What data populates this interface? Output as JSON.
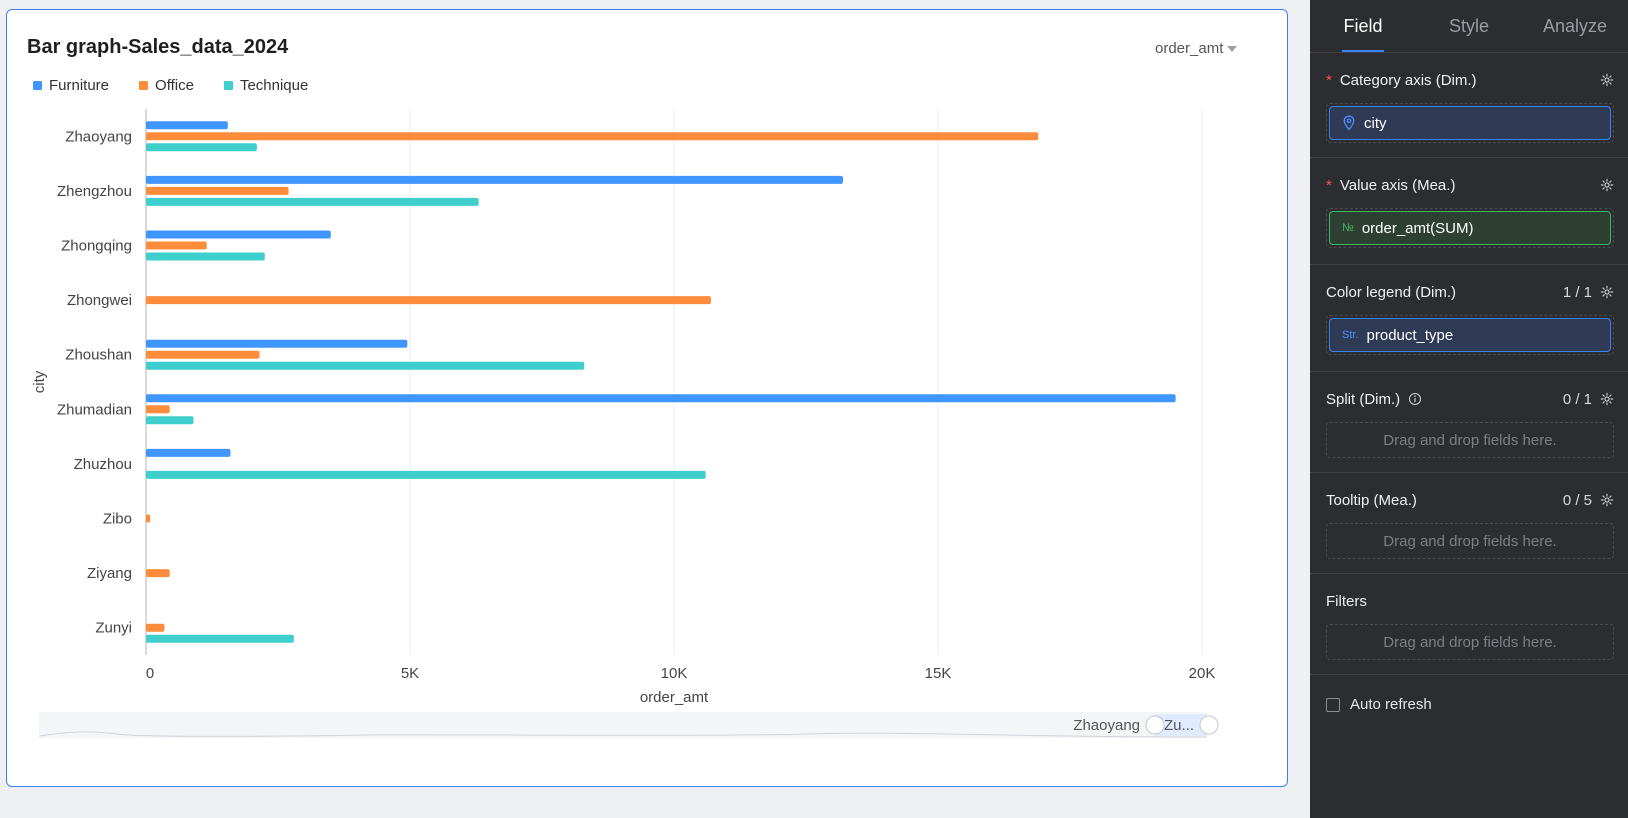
{
  "chart": {
    "title": "Bar graph-Sales_data_2024",
    "measure_selector": "order_amt",
    "zoom_labels": {
      "start": "Zhaoyang",
      "end": "Zu..."
    }
  },
  "chart_data": {
    "type": "bar",
    "orientation": "horizontal",
    "title": "Bar graph-Sales_data_2024",
    "xlabel": "order_amt",
    "ylabel": "city",
    "xlim": [
      0,
      20000
    ],
    "x_ticks": [
      "0",
      "5K",
      "10K",
      "15K",
      "20K"
    ],
    "grid": true,
    "legend_position": "top-left",
    "categories": [
      "Zhaoyang",
      "Zhengzhou",
      "Zhongqing",
      "Zhongwei",
      "Zhoushan",
      "Zhumadian",
      "Zhuzhou",
      "Zibo",
      "Ziyang",
      "Zunyi"
    ],
    "series": [
      {
        "name": "Furniture",
        "color": "#4096ff",
        "values": [
          1550,
          13200,
          3500,
          null,
          4950,
          19500,
          1600,
          null,
          null,
          null
        ]
      },
      {
        "name": "Office",
        "color": "#ff8c3a",
        "values": [
          16900,
          2700,
          1150,
          10700,
          2150,
          450,
          null,
          80,
          450,
          350
        ]
      },
      {
        "name": "Technique",
        "color": "#3ecfcc",
        "values": [
          2100,
          6300,
          2250,
          null,
          8300,
          900,
          10600,
          null,
          null,
          2800
        ]
      }
    ]
  },
  "panel": {
    "tabs": [
      {
        "label": "Field",
        "active": true
      },
      {
        "label": "Style",
        "active": false
      },
      {
        "label": "Analyze",
        "active": false
      }
    ],
    "category_axis": {
      "required_mark": "*",
      "title": "Category axis (Dim.)",
      "field": "city",
      "icon": "location-pin-icon"
    },
    "value_axis": {
      "required_mark": "*",
      "title": "Value axis (Mea.)",
      "field": "order_amt(SUM)",
      "icon_text": "№"
    },
    "color_legend": {
      "title": "Color legend (Dim.)",
      "count": "1 / 1",
      "field": "product_type",
      "icon_text": "Str."
    },
    "split": {
      "title": "Split (Dim.)",
      "count": "0 / 1",
      "placeholder": "Drag and drop fields here."
    },
    "tooltip": {
      "title": "Tooltip (Mea.)",
      "count": "0 / 5",
      "placeholder": "Drag and drop fields here."
    },
    "filters": {
      "title": "Filters",
      "placeholder": "Drag and drop fields here."
    },
    "auto_refresh": {
      "label": "Auto refresh",
      "checked": false
    }
  }
}
